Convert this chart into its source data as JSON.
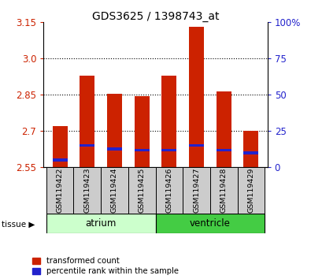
{
  "title": "GDS3625 / 1398743_at",
  "samples": [
    "GSM119422",
    "GSM119423",
    "GSM119424",
    "GSM119425",
    "GSM119426",
    "GSM119427",
    "GSM119428",
    "GSM119429"
  ],
  "red_values": [
    2.72,
    2.93,
    2.855,
    2.845,
    2.93,
    3.13,
    2.865,
    2.7
  ],
  "blue_values": [
    2.575,
    2.635,
    2.62,
    2.615,
    2.615,
    2.635,
    2.615,
    2.605
  ],
  "baseline": 2.55,
  "ylim": [
    2.55,
    3.15
  ],
  "yticks_left": [
    2.55,
    2.7,
    2.85,
    3.0,
    3.15
  ],
  "yticks_right_vals": [
    0,
    25,
    50,
    75,
    100
  ],
  "yticks_right_labels": [
    "0",
    "25",
    "50",
    "75",
    "100%"
  ],
  "bar_width": 0.55,
  "red_color": "#cc2200",
  "blue_color": "#2222cc",
  "title_size": 10,
  "legend_entries": [
    "transformed count",
    "percentile rank within the sample"
  ],
  "atrium_color": "#ccffcc",
  "ventricle_color": "#44cc44",
  "sample_box_color": "#cccccc",
  "n_atrium": 4,
  "n_ventricle": 4
}
